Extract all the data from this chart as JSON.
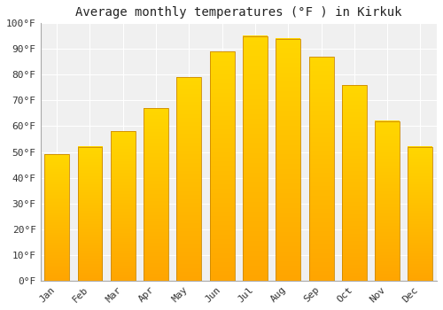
{
  "title": "Average monthly temperatures (°F ) in Kirkuk",
  "months": [
    "Jan",
    "Feb",
    "Mar",
    "Apr",
    "May",
    "Jun",
    "Jul",
    "Aug",
    "Sep",
    "Oct",
    "Nov",
    "Dec"
  ],
  "values": [
    49,
    52,
    58,
    67,
    79,
    89,
    95,
    94,
    87,
    76,
    62,
    52
  ],
  "bar_color_top": "#FFD700",
  "bar_color_bottom": "#FFA500",
  "bar_edge_color": "#CC8800",
  "figure_bg": "#FFFFFF",
  "plot_bg": "#F0F0F0",
  "grid_color": "#FFFFFF",
  "ylim": [
    0,
    100
  ],
  "yticks": [
    0,
    10,
    20,
    30,
    40,
    50,
    60,
    70,
    80,
    90,
    100
  ],
  "title_fontsize": 10,
  "tick_fontsize": 8,
  "tick_font": "monospace"
}
